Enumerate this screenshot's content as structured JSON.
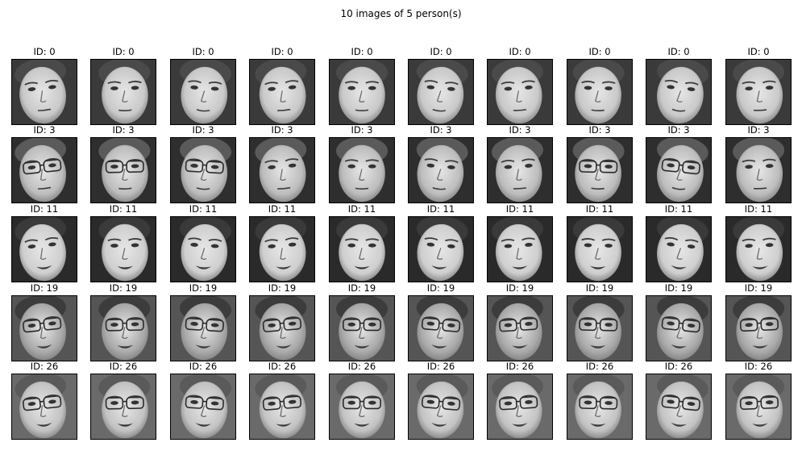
{
  "figure": {
    "suptitle": "10 images of 5 person(s)"
  },
  "rows": [
    {
      "person_id_label": "ID: 0",
      "style": {
        "bg": "#3a3a3a",
        "skin": "#c9c9c9",
        "hair": "#4a4a4a",
        "glasses": false,
        "smile": false
      },
      "images": [
        {
          "title": "ID: 0",
          "variant": 0
        },
        {
          "title": "ID: 0",
          "variant": 1
        },
        {
          "title": "ID: 0",
          "variant": 2
        },
        {
          "title": "ID: 0",
          "variant": 3
        },
        {
          "title": "ID: 0",
          "variant": 4
        },
        {
          "title": "ID: 0",
          "variant": 5
        },
        {
          "title": "ID: 0",
          "variant": 6
        },
        {
          "title": "ID: 0",
          "variant": 7
        },
        {
          "title": "ID: 0",
          "variant": 8
        },
        {
          "title": "ID: 0",
          "variant": 9
        }
      ]
    },
    {
      "person_id_label": "ID: 3",
      "style": {
        "bg": "#2e2e2e",
        "skin": "#bdbdbd",
        "hair": "#5a5a5a",
        "glasses": true,
        "smile": false
      },
      "images": [
        {
          "title": "ID: 3",
          "variant": 0,
          "glasses": true
        },
        {
          "title": "ID: 3",
          "variant": 1,
          "glasses": true
        },
        {
          "title": "ID: 3",
          "variant": 2,
          "glasses": true
        },
        {
          "title": "ID: 3",
          "variant": 3,
          "glasses": false
        },
        {
          "title": "ID: 3",
          "variant": 4,
          "glasses": false
        },
        {
          "title": "ID: 3",
          "variant": 5,
          "glasses": false
        },
        {
          "title": "ID: 3",
          "variant": 6,
          "glasses": false
        },
        {
          "title": "ID: 3",
          "variant": 7,
          "glasses": true
        },
        {
          "title": "ID: 3",
          "variant": 8,
          "glasses": true
        },
        {
          "title": "ID: 3",
          "variant": 9,
          "glasses": false
        }
      ]
    },
    {
      "person_id_label": "ID: 11",
      "style": {
        "bg": "#2a2a2a",
        "skin": "#cfcfcf",
        "hair": "#3a3a3a",
        "glasses": false,
        "smile": true
      },
      "images": [
        {
          "title": "ID: 11",
          "variant": 0
        },
        {
          "title": "ID: 11",
          "variant": 1
        },
        {
          "title": "ID: 11",
          "variant": 2
        },
        {
          "title": "ID: 11",
          "variant": 3
        },
        {
          "title": "ID: 11",
          "variant": 4
        },
        {
          "title": "ID: 11",
          "variant": 5
        },
        {
          "title": "ID: 11",
          "variant": 6
        },
        {
          "title": "ID: 11",
          "variant": 7
        },
        {
          "title": "ID: 11",
          "variant": 8
        },
        {
          "title": "ID: 11",
          "variant": 9
        }
      ]
    },
    {
      "person_id_label": "ID: 19",
      "style": {
        "bg": "#555555",
        "skin": "#a9a9a9",
        "hair": "#3c3c3c",
        "glasses": true,
        "smile": true
      },
      "images": [
        {
          "title": "ID: 19",
          "variant": 0
        },
        {
          "title": "ID: 19",
          "variant": 1
        },
        {
          "title": "ID: 19",
          "variant": 2
        },
        {
          "title": "ID: 19",
          "variant": 3
        },
        {
          "title": "ID: 19",
          "variant": 4
        },
        {
          "title": "ID: 19",
          "variant": 5
        },
        {
          "title": "ID: 19",
          "variant": 6
        },
        {
          "title": "ID: 19",
          "variant": 7
        },
        {
          "title": "ID: 19",
          "variant": 8
        },
        {
          "title": "ID: 19",
          "variant": 9
        }
      ]
    },
    {
      "person_id_label": "ID: 26",
      "style": {
        "bg": "#6a6a6a",
        "skin": "#c3c3c3",
        "hair": "#5a5a5a",
        "glasses": true,
        "smile": true
      },
      "images": [
        {
          "title": "ID: 26",
          "variant": 0
        },
        {
          "title": "ID: 26",
          "variant": 1
        },
        {
          "title": "ID: 26",
          "variant": 2
        },
        {
          "title": "ID: 26",
          "variant": 3
        },
        {
          "title": "ID: 26",
          "variant": 4
        },
        {
          "title": "ID: 26",
          "variant": 5
        },
        {
          "title": "ID: 26",
          "variant": 6
        },
        {
          "title": "ID: 26",
          "variant": 7
        },
        {
          "title": "ID: 26",
          "variant": 8
        },
        {
          "title": "ID: 26",
          "variant": 9
        }
      ]
    }
  ]
}
